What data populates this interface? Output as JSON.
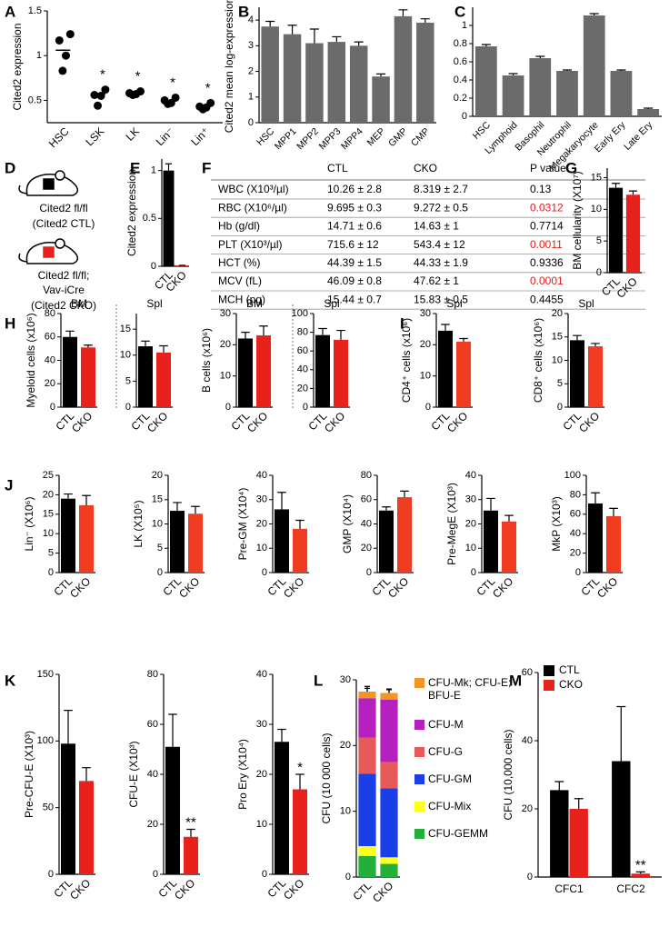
{
  "genotype_panel": "D",
  "genotypes": [
    {
      "lines": [
        "Cited2 fl/fl",
        "(Cited2 CTL)"
      ],
      "color": "#000000"
    },
    {
      "lines": [
        "Cited2 fl/fl;",
        "Vav-iCre",
        "(Cited2 CKO)"
      ],
      "color": "#e8211c"
    }
  ],
  "chart_data": [
    {
      "type": "dot",
      "panel": "A",
      "ylabel": "Cited2 expression",
      "categories": [
        "HSC",
        "LSK",
        "LK",
        "Lin⁻",
        "Lin⁺"
      ],
      "values": [
        [
          1.24,
          1.17,
          1.0,
          0.83
        ],
        [
          0.62,
          0.56,
          0.55,
          0.44
        ],
        [
          0.6,
          0.58,
          0.57,
          0.56
        ],
        [
          0.53,
          0.5,
          0.47,
          0.46
        ],
        [
          0.47,
          0.43,
          0.42,
          0.4
        ]
      ],
      "means": [
        1.06,
        0.57,
        0.58,
        0.49,
        0.43
      ],
      "annotations": [
        null,
        "*",
        "*",
        "*",
        "*"
      ],
      "color": "#000000",
      "ylim": [
        0.25,
        1.5
      ],
      "yticks": [
        0.5,
        1,
        1.5
      ]
    },
    {
      "type": "bar",
      "panel": "B",
      "ylabel": "Cited2 mean log-expression",
      "categories": [
        "HSC",
        "MPP1",
        "MPP2",
        "MPP3",
        "MPP4",
        "MEP",
        "GMP",
        "CMP"
      ],
      "values": [
        3.75,
        3.45,
        3.1,
        3.15,
        3.0,
        1.8,
        4.15,
        3.9
      ],
      "errors": [
        0.2,
        0.35,
        0.55,
        0.2,
        0.15,
        0.1,
        0.25,
        0.15
      ],
      "color": "#6b6b6b",
      "ylim": [
        0,
        4.5
      ],
      "yticks": [
        0,
        1,
        2,
        3,
        4
      ]
    },
    {
      "type": "bar",
      "panel": "C",
      "categories": [
        "HSC",
        "Lymphoid",
        "Basophil",
        "Neutrophil",
        "Megakaryocyte",
        "Early Ery",
        "Late Ery"
      ],
      "values": [
        0.77,
        0.45,
        0.64,
        0.5,
        1.11,
        0.5,
        0.08
      ],
      "errors": [
        0.02,
        0.02,
        0.02,
        0.01,
        0.02,
        0.01,
        0.01
      ],
      "color": "#6b6b6b",
      "ylim": [
        0,
        1.2
      ],
      "yticks": [
        0,
        0.2,
        0.4,
        0.6,
        0.8,
        1
      ]
    },
    {
      "type": "bar",
      "panel": "E",
      "ylabel": "Cited2 expression",
      "categories": [
        "CTL",
        "CKO"
      ],
      "values": [
        1,
        0.01
      ],
      "errors": [
        0.07,
        0
      ],
      "colors": [
        "#000000",
        "#e8211c"
      ],
      "ylim": [
        0,
        1.12
      ],
      "yticks": [
        0,
        0.5,
        1
      ]
    },
    {
      "type": "table",
      "panel": "F",
      "columns": [
        "CTL",
        "CKO",
        "P value"
      ],
      "rows": [
        [
          "WBC (X10³/µl)",
          "10.26 ± 2.8",
          "8.319 ± 2.7",
          "0.13"
        ],
        [
          "RBC (X10⁶/µl)",
          "9.695 ± 0.3",
          "9.272 ± 0.5",
          "0.0312"
        ],
        [
          "Hb (g/dl)",
          "14.71 ± 0.6",
          "14.63 ± 1",
          "0.7714"
        ],
        [
          "PLT (X10³/µl)",
          "715.6 ± 12",
          "543.4 ± 12",
          "0.0011"
        ],
        [
          "HCT (%)",
          "44.39 ± 1.5",
          "44.33 ± 1.9",
          "0.9336"
        ],
        [
          "MCV (fL)",
          "46.09 ± 0.8",
          "47.62 ± 1",
          "0.0001"
        ],
        [
          "MCH (pg)",
          "15.44 ± 0.7",
          "15.83 ± 0.5",
          "0.4455"
        ]
      ],
      "significant": [
        false,
        true,
        false,
        true,
        false,
        true,
        false
      ],
      "significant_color": "#d9231d"
    },
    {
      "type": "bar",
      "panel": "G",
      "ylabel": "BM cellularity (X10⁷)",
      "categories": [
        "CTL",
        "CKO"
      ],
      "values": [
        13.4,
        12.3
      ],
      "errors": [
        0.7,
        0.6
      ],
      "colors": [
        "#000000",
        "#e8211c"
      ],
      "ylim": [
        0,
        16.5
      ],
      "yticks": [
        0,
        5,
        10,
        15
      ]
    },
    {
      "type": "bar",
      "panel": "H",
      "ylabel": "Myeloid cells (x10⁶)",
      "subtitle": "BM",
      "categories": [
        "CTL",
        "CKO"
      ],
      "values": [
        60,
        51
      ],
      "errors": [
        5,
        2
      ],
      "colors": [
        "#000000",
        "#e8211c"
      ],
      "ylim": [
        0,
        80
      ],
      "yticks": [
        0,
        20,
        40,
        60,
        80
      ]
    },
    {
      "type": "bar",
      "subtitle": "Spl",
      "categories": [
        "CTL",
        "CKO"
      ],
      "values": [
        11.7,
        10.5
      ],
      "errors": [
        1,
        1.3
      ],
      "colors": [
        "#000000",
        "#e8211c"
      ],
      "ylim": [
        0,
        18
      ],
      "yticks": [
        0,
        5,
        10,
        15
      ]
    },
    {
      "type": "bar",
      "ylabel": "B cells (x10⁶)",
      "subtitle": "BM",
      "categories": [
        "CTL",
        "CKO"
      ],
      "values": [
        22,
        23
      ],
      "errors": [
        2,
        3
      ],
      "colors": [
        "#000000",
        "#e8211c"
      ],
      "ylim": [
        0,
        30
      ],
      "yticks": [
        0,
        10,
        20,
        30
      ]
    },
    {
      "type": "bar",
      "subtitle": "Spl",
      "categories": [
        "CTL",
        "CKO"
      ],
      "values": [
        77,
        72
      ],
      "errors": [
        7,
        10
      ],
      "colors": [
        "#000000",
        "#e8211c"
      ],
      "ylim": [
        0,
        100
      ],
      "yticks": [
        0,
        20,
        40,
        60,
        80,
        100
      ]
    },
    {
      "type": "bar",
      "panel": "I",
      "ylabel": "CD4⁺ cells (x10⁶)",
      "subtitle": "Spl",
      "categories": [
        "CTL",
        "CKO"
      ],
      "values": [
        24.5,
        21
      ],
      "errors": [
        2,
        1
      ],
      "colors": [
        "#000000",
        "#f03c20"
      ],
      "ylim": [
        0,
        30
      ],
      "yticks": [
        0,
        10,
        20,
        30
      ]
    },
    {
      "type": "bar",
      "ylabel": "CD8⁺ cells (x10⁶)",
      "subtitle": "Spl",
      "categories": [
        "CTL",
        "CKO"
      ],
      "values": [
        14.3,
        13
      ],
      "errors": [
        1,
        0.6
      ],
      "colors": [
        "#000000",
        "#f03c20"
      ],
      "ylim": [
        0,
        20
      ],
      "yticks": [
        0,
        5,
        10,
        15,
        20
      ]
    },
    {
      "type": "bar",
      "panel": "J",
      "ylabel": "Lin⁻ (X10⁶)",
      "categories": [
        "CTL",
        "CKO"
      ],
      "values": [
        19,
        17.3
      ],
      "errors": [
        1.2,
        2.5
      ],
      "colors": [
        "#000000",
        "#f03c20"
      ],
      "ylim": [
        0,
        25
      ],
      "yticks": [
        0,
        5,
        10,
        15,
        20,
        25
      ]
    },
    {
      "type": "bar",
      "ylabel": "LK (X10⁵)",
      "categories": [
        "CTL",
        "CKO"
      ],
      "values": [
        12.7,
        12.1
      ],
      "errors": [
        1.7,
        1.5
      ],
      "colors": [
        "#000000",
        "#f03c20"
      ],
      "ylim": [
        0,
        20
      ],
      "yticks": [
        0,
        5,
        10,
        15,
        20
      ]
    },
    {
      "type": "bar",
      "ylabel": "Pre-GM (X10⁴)",
      "categories": [
        "CTL",
        "CKO"
      ],
      "values": [
        26,
        18
      ],
      "errors": [
        7,
        3.5
      ],
      "colors": [
        "#000000",
        "#f03c20"
      ],
      "ylim": [
        0,
        40
      ],
      "yticks": [
        0,
        10,
        20,
        30,
        40
      ]
    },
    {
      "type": "bar",
      "ylabel": "GMP (X10⁴)",
      "categories": [
        "CTL",
        "CKO"
      ],
      "values": [
        51,
        62
      ],
      "errors": [
        3,
        5
      ],
      "colors": [
        "#000000",
        "#f03c20"
      ],
      "ylim": [
        0,
        80
      ],
      "yticks": [
        0,
        20,
        40,
        60,
        80
      ]
    },
    {
      "type": "bar",
      "ylabel": "Pre-MegE (X10³)",
      "categories": [
        "CTL",
        "CKO"
      ],
      "values": [
        25.5,
        21
      ],
      "errors": [
        5,
        2.5
      ],
      "colors": [
        "#000000",
        "#f03c20"
      ],
      "ylim": [
        0,
        40
      ],
      "yticks": [
        0,
        10,
        20,
        30,
        40
      ]
    },
    {
      "type": "bar",
      "ylabel": "MkP (X10³)",
      "categories": [
        "CTL",
        "CKO"
      ],
      "values": [
        71,
        58
      ],
      "errors": [
        11,
        8
      ],
      "colors": [
        "#000000",
        "#f03c20"
      ],
      "ylim": [
        0,
        100
      ],
      "yticks": [
        0,
        20,
        40,
        60,
        80,
        100
      ]
    },
    {
      "type": "bar",
      "panel": "K",
      "ylabel": "Pre-CFU-E (X10³)",
      "categories": [
        "CTL",
        "CKO"
      ],
      "values": [
        98,
        70
      ],
      "errors": [
        25,
        10
      ],
      "colors": [
        "#000000",
        "#e8211c"
      ],
      "ylim": [
        0,
        150
      ],
      "yticks": [
        0,
        50,
        100,
        150
      ]
    },
    {
      "type": "bar",
      "ylabel": "CFU-E (X10³)",
      "categories": [
        "CTL",
        "CKO"
      ],
      "values": [
        51,
        15
      ],
      "errors": [
        13,
        3
      ],
      "annotations": [
        null,
        "**"
      ],
      "colors": [
        "#000000",
        "#e8211c"
      ],
      "ylim": [
        0,
        80
      ],
      "yticks": [
        0,
        20,
        40,
        60,
        80
      ]
    },
    {
      "type": "bar",
      "ylabel": "Pro Ery (X10⁴)",
      "categories": [
        "CTL",
        "CKO"
      ],
      "values": [
        26.5,
        17
      ],
      "errors": [
        2.5,
        3
      ],
      "annotations": [
        null,
        "*"
      ],
      "colors": [
        "#000000",
        "#e8211c"
      ],
      "ylim": [
        0,
        40
      ],
      "yticks": [
        0,
        10,
        20,
        30,
        40
      ]
    },
    {
      "type": "stacked_bar",
      "panel": "L",
      "ylabel": "CFU (10 000 cells)",
      "categories": [
        "CTL",
        "CKO"
      ],
      "legend": "right",
      "series": [
        {
          "name": "CFU-GEMM",
          "color": "#22b03a",
          "values": [
            3.2,
            2
          ],
          "errors": [
            0.5,
            0.4
          ]
        },
        {
          "name": "CFU-Mix",
          "color": "#ffff1a",
          "values": [
            1.5,
            1
          ],
          "errors": [
            0.3,
            0.3
          ]
        },
        {
          "name": "CFU-GM",
          "color": "#1a3fe6",
          "values": [
            11,
            10.5
          ],
          "errors": [
            1.8,
            1.5
          ]
        },
        {
          "name": "CFU-G",
          "color": "#e85a5a",
          "values": [
            5.5,
            4
          ],
          "errors": [
            1.5,
            1.2
          ]
        },
        {
          "name": "CFU-M",
          "color": "#b61fc0",
          "values": [
            6,
            9.5
          ],
          "errors": [
            1.5,
            1.5
          ]
        },
        {
          "name": "CFU-Mk; CFU-E; BFU-E",
          "color": "#f29622",
          "values": [
            1,
            1
          ],
          "errors": [
            0.8,
            0.6
          ]
        }
      ],
      "ylim": [
        0,
        30
      ],
      "yticks": [
        0,
        10,
        20,
        30
      ]
    },
    {
      "type": "grouped_bar",
      "panel": "M",
      "ylabel": "CFU (10,000 cells)",
      "categories": [
        "CFC1",
        "CFC2"
      ],
      "legend": "top-left",
      "series": [
        {
          "name": "CTL",
          "color": "#000000",
          "values": [
            25.5,
            34
          ],
          "errors": [
            2.5,
            16
          ],
          "annotations": [
            null,
            null
          ]
        },
        {
          "name": "CKO",
          "color": "#e8211c",
          "values": [
            20,
            1
          ],
          "errors": [
            3,
            0.5
          ],
          "annotations": [
            null,
            "**"
          ]
        }
      ],
      "ylim": [
        0,
        60
      ],
      "yticks": [
        0,
        20,
        40,
        60
      ]
    }
  ]
}
